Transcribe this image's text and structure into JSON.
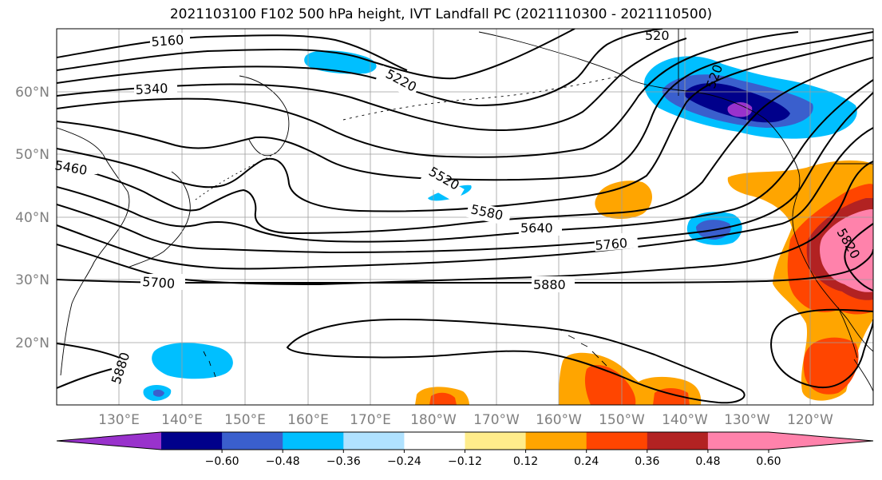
{
  "title": "2021103100 F102 500 hPa height, IVT Landfall PC (2021110300 - 2021110500)",
  "map": {
    "lat_labels": [
      "60°N",
      "50°N",
      "40°N",
      "30°N",
      "20°N"
    ],
    "lon_labels": [
      "130°E",
      "140°E",
      "150°E",
      "160°E",
      "170°E",
      "180°W",
      "170°W",
      "160°W",
      "150°W",
      "140°W",
      "130°W",
      "120°W"
    ],
    "contour_labels": [
      "5160",
      "5220",
      "5340",
      "5460",
      "5520",
      "5580",
      "5640",
      "5760",
      "5700",
      "5880",
      "5880",
      "5820",
      "520",
      "520"
    ]
  },
  "colorbar": {
    "ticks": [
      "−0.60",
      "−0.48",
      "−0.36",
      "−0.24",
      "−0.12",
      "0.12",
      "0.24",
      "0.36",
      "0.48",
      "0.60"
    ],
    "colors": [
      "#9932cc",
      "#00008b",
      "#3a5fcd",
      "#00bfff",
      "#b0e2ff",
      "#ffffff",
      "#ffec8b",
      "#ffa500",
      "#ff4500",
      "#b22222",
      "#ff82ab",
      "#ff82ab"
    ]
  },
  "palette": {
    "purple": "#9932cc",
    "navy": "#00008b",
    "royal": "#3a5fcd",
    "sky": "#00bfff",
    "pale": "#b0e2ff",
    "yellow": "#ffec8b",
    "orange": "#ffa500",
    "red": "#ff4500",
    "dark_red": "#b22222",
    "pink": "#ff82ab"
  }
}
